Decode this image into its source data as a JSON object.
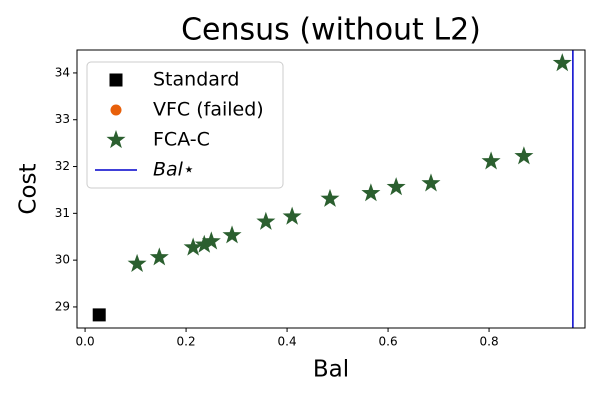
{
  "chart_data": {
    "type": "scatter",
    "title": "Census (without L2)",
    "x_label": "Bal",
    "y_label": "Cost",
    "xlim": [
      -0.016,
      0.99
    ],
    "ylim": [
      28.55,
      34.49
    ],
    "xticks": [
      {
        "value": 0,
        "label": "0.0"
      },
      0.2,
      0.4,
      0.6,
      0.8
    ],
    "yticks": [
      29,
      30,
      31,
      32,
      33,
      34
    ],
    "legend": "upper left",
    "series": [
      {
        "name": "Standard",
        "color": "#000000",
        "marker": "square",
        "x": [
          0.028
        ],
        "y": [
          28.83
        ]
      },
      {
        "name": "VFC (failed)",
        "color": "#e8600a",
        "marker": "circle",
        "x": [],
        "y": []
      },
      {
        "name": "FCA-C",
        "color": "#2b5f2f",
        "marker": "star",
        "x": [
          0.103,
          0.147,
          0.214,
          0.236,
          0.25,
          0.291,
          0.358,
          0.41,
          0.485,
          0.566,
          0.616,
          0.685,
          0.804,
          0.869,
          0.945
        ],
        "y": [
          29.92,
          30.06,
          30.27,
          30.33,
          30.4,
          30.53,
          30.82,
          30.93,
          31.31,
          31.43,
          31.56,
          31.64,
          32.11,
          32.22,
          34.21
        ]
      }
    ],
    "vlines": [
      {
        "name": "Bal⋆",
        "x": 0.966,
        "color": "#0000cc"
      }
    ]
  }
}
